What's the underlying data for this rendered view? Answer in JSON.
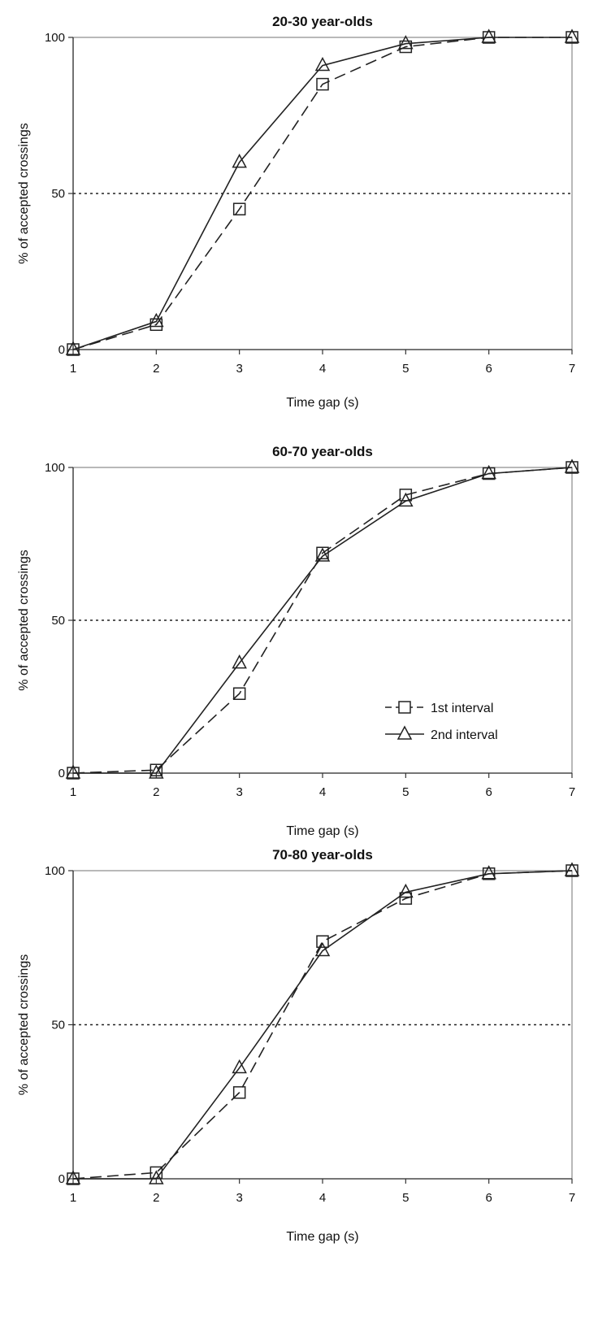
{
  "chart_data": [
    {
      "type": "line",
      "title": "20-30 year-olds",
      "xlabel": "Time gap (s)",
      "ylabel": "% of accepted crossings",
      "x": [
        1,
        2,
        3,
        4,
        5,
        6,
        7
      ],
      "xlim": [
        1,
        7
      ],
      "ylim": [
        0,
        100
      ],
      "xticks": [
        "1",
        "2",
        "3",
        "4",
        "5",
        "6",
        "7"
      ],
      "yticks": [
        "0",
        "50",
        "100"
      ],
      "reference_line": {
        "y": 50,
        "style": "dotted"
      },
      "series": [
        {
          "name": "1st interval",
          "marker": "square",
          "line": "dashed",
          "values": [
            0,
            8,
            45,
            85,
            97,
            100,
            100
          ]
        },
        {
          "name": "2nd interval",
          "marker": "triangle",
          "line": "solid",
          "values": [
            0,
            9,
            60,
            91,
            98,
            100,
            100
          ]
        }
      ]
    },
    {
      "type": "line",
      "title": "60-70 year-olds",
      "xlabel": "Time gap (s)",
      "ylabel": "% of accepted crossings",
      "x": [
        1,
        2,
        3,
        4,
        5,
        6,
        7
      ],
      "xlim": [
        1,
        7
      ],
      "ylim": [
        0,
        100
      ],
      "xticks": [
        "1",
        "2",
        "3",
        "4",
        "5",
        "6",
        "7"
      ],
      "yticks": [
        "0",
        "50",
        "100"
      ],
      "reference_line": {
        "y": 50,
        "style": "dotted"
      },
      "legend": {
        "placement": "lower-right"
      },
      "series": [
        {
          "name": "1st interval",
          "marker": "square",
          "line": "dashed",
          "values": [
            0,
            1,
            26,
            72,
            91,
            98,
            100
          ]
        },
        {
          "name": "2nd interval",
          "marker": "triangle",
          "line": "solid",
          "values": [
            0,
            0,
            36,
            71,
            89,
            98,
            100
          ]
        }
      ]
    },
    {
      "type": "line",
      "title": "70-80 year-olds",
      "xlabel": "Time gap (s)",
      "ylabel": "% of accepted crossings",
      "x": [
        1,
        2,
        3,
        4,
        5,
        6,
        7
      ],
      "xlim": [
        1,
        7
      ],
      "ylim": [
        0,
        100
      ],
      "xticks": [
        "1",
        "2",
        "3",
        "4",
        "5",
        "6",
        "7"
      ],
      "yticks": [
        "0",
        "50",
        "100"
      ],
      "reference_line": {
        "y": 50,
        "style": "dotted"
      },
      "series": [
        {
          "name": "1st interval",
          "marker": "square",
          "line": "dashed",
          "values": [
            0,
            2,
            28,
            77,
            91,
            99,
            100
          ]
        },
        {
          "name": "2nd interval",
          "marker": "triangle",
          "line": "solid",
          "values": [
            0,
            0,
            36,
            74,
            93,
            99,
            100
          ]
        }
      ]
    }
  ]
}
